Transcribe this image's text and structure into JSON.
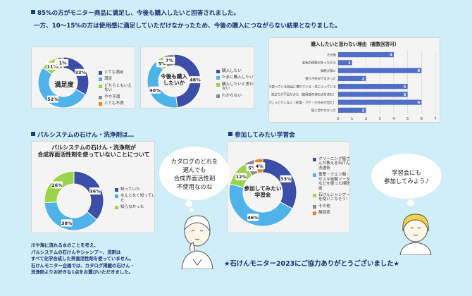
{
  "intro": {
    "line1": "85%の方がモニター商品に満足し、今後も購入したいと回答されました。",
    "line2": "一方、10～15%の方は使用感に満足していただけなかったため、今後の購入につながらない結果となりました。"
  },
  "sections": {
    "soap_header": "パルシステムの石けん・洗浄剤は…",
    "study_header": "参加してみたい学習会"
  },
  "bubbles": {
    "left": "カタログのどれを\n選んでも\n合成界面活性剤\n不使用なのね",
    "right": "学習会にも\n参加してみよう♪"
  },
  "note": "川や海に流れる水のことを考え、\nパルシステムの石けんやシャンプー、洗剤は\nすべて化学合成した界面活性剤を使っていません。\n石けんモニター企画では、カタログ掲載の石けん・\n洗浄剤よりお好きな1点をお選びいただきました。",
  "thanks": "★石けんモニター2023にご協力ありがとうございました★",
  "colors": {
    "bg": "#cfeef7",
    "heading": "#1c2a6e"
  },
  "chart_data": [
    {
      "id": "satisfaction",
      "type": "pie",
      "title": "満足度",
      "categories": [
        "とても満足",
        "満足",
        "どちらともいえない",
        "やや不満",
        "とても不満"
      ],
      "values": [
        33,
        52,
        11,
        3,
        1
      ],
      "colors": [
        "#3b4ea8",
        "#4fb3ea",
        "#9bd34c",
        "#8a8a8a",
        "#e8832a"
      ],
      "labels": [
        "33%",
        "52%",
        "11%",
        "3%",
        "1%"
      ],
      "legend": "right"
    },
    {
      "id": "repurchase",
      "type": "pie",
      "title": "今後も購入したいか",
      "categories": [
        "購入したい",
        "たまに購入したい",
        "購入したいと思わない",
        "わからない"
      ],
      "values": [
        48,
        40,
        5,
        7
      ],
      "colors": [
        "#3b4ea8",
        "#4fb3ea",
        "#9bd34c",
        "#8a8a8a"
      ],
      "labels": [
        "48%",
        "40%",
        "5%",
        "7%"
      ],
      "legend": "right"
    },
    {
      "id": "reasons",
      "type": "bar",
      "orientation": "horizontal",
      "title": "購入したいと思わない理由（複数回答可）",
      "categories": [
        "その他",
        "変色の経験があったから",
        "価格が高い",
        "香りが好みでなかった",
        "今使っている商品に慣れている・気に入っている",
        "泡立ちが不足だから（使用感の他の点を含む）",
        "髪がしっとりしない（乾燥・フケ・かゆみが出た）",
        "肌に合わなかった"
      ],
      "values": [
        4,
        1,
        6,
        2,
        5,
        5,
        6,
        2
      ],
      "xlim": [
        0,
        7
      ],
      "xticks": [
        "0",
        "1",
        "2",
        "3",
        "4",
        "5",
        "6",
        "7"
      ],
      "color": "#4e6ec8"
    },
    {
      "id": "surfactant",
      "type": "pie",
      "title": "パルシステムの石けん・洗浄剤が\n合成界面活性剤を使っていないことについて",
      "categories": [
        "知っていた",
        "なんとなく知っていた",
        "知らなかった"
      ],
      "values": [
        36,
        38,
        26
      ],
      "colors": [
        "#3b4ea8",
        "#4fb3ea",
        "#9bd34c"
      ],
      "labels": [
        "36%",
        "38%",
        "26%"
      ],
      "legend": "right"
    },
    {
      "id": "study",
      "type": "pie",
      "title": "参加してみたい\n学習会",
      "categories": [
        "クリーニング屋さんが教える石けん洗濯術",
        "重曹・クエン酸・セスキ炭酸ソーダなどを使った掃除術",
        "石けんシャンプーを使いこなそう！",
        "その他",
        "無回答"
      ],
      "values": [
        33,
        46,
        12,
        5,
        4
      ],
      "colors": [
        "#3b4ea8",
        "#4fb3ea",
        "#9bd34c",
        "#8a8a8a",
        "#e8832a"
      ],
      "labels": [
        "33%",
        "46%",
        "12%",
        "5%",
        "4%"
      ],
      "legend": "right"
    }
  ]
}
